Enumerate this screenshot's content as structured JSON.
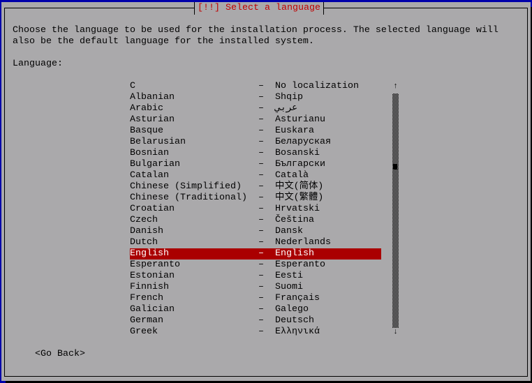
{
  "dialog": {
    "title": "[!!] Select a language",
    "description": "Choose the language to be used for the installation process. The selected language will\nalso be the default language for the installed system.",
    "field_label": "Language:",
    "separator": "–",
    "selected_index": 15,
    "languages": [
      {
        "name": "C",
        "native": "No localization"
      },
      {
        "name": "Albanian",
        "native": "Shqip"
      },
      {
        "name": "Arabic",
        "native": "عربي"
      },
      {
        "name": "Asturian",
        "native": "Asturianu"
      },
      {
        "name": "Basque",
        "native": "Euskara"
      },
      {
        "name": "Belarusian",
        "native": "Беларуская"
      },
      {
        "name": "Bosnian",
        "native": "Bosanski"
      },
      {
        "name": "Bulgarian",
        "native": "Български"
      },
      {
        "name": "Catalan",
        "native": "Català"
      },
      {
        "name": "Chinese (Simplified)",
        "native": "中文(简体)"
      },
      {
        "name": "Chinese (Traditional)",
        "native": "中文(繁體)"
      },
      {
        "name": "Croatian",
        "native": "Hrvatski"
      },
      {
        "name": "Czech",
        "native": "Čeština"
      },
      {
        "name": "Danish",
        "native": "Dansk"
      },
      {
        "name": "Dutch",
        "native": "Nederlands"
      },
      {
        "name": "English",
        "native": "English"
      },
      {
        "name": "Esperanto",
        "native": "Esperanto"
      },
      {
        "name": "Estonian",
        "native": "Eesti"
      },
      {
        "name": "Finnish",
        "native": "Suomi"
      },
      {
        "name": "French",
        "native": "Français"
      },
      {
        "name": "Galician",
        "native": "Galego"
      },
      {
        "name": "German",
        "native": "Deutsch"
      },
      {
        "name": "Greek",
        "native": "Ελληνικά"
      }
    ],
    "scroll_up_icon": "↑",
    "scroll_down_icon": "↓",
    "go_back_label": "<Go Back>"
  },
  "colors": {
    "background": "#0000aa",
    "dialog": "#aaa9ab",
    "title": "#c00000",
    "selection": "#aa0000"
  }
}
